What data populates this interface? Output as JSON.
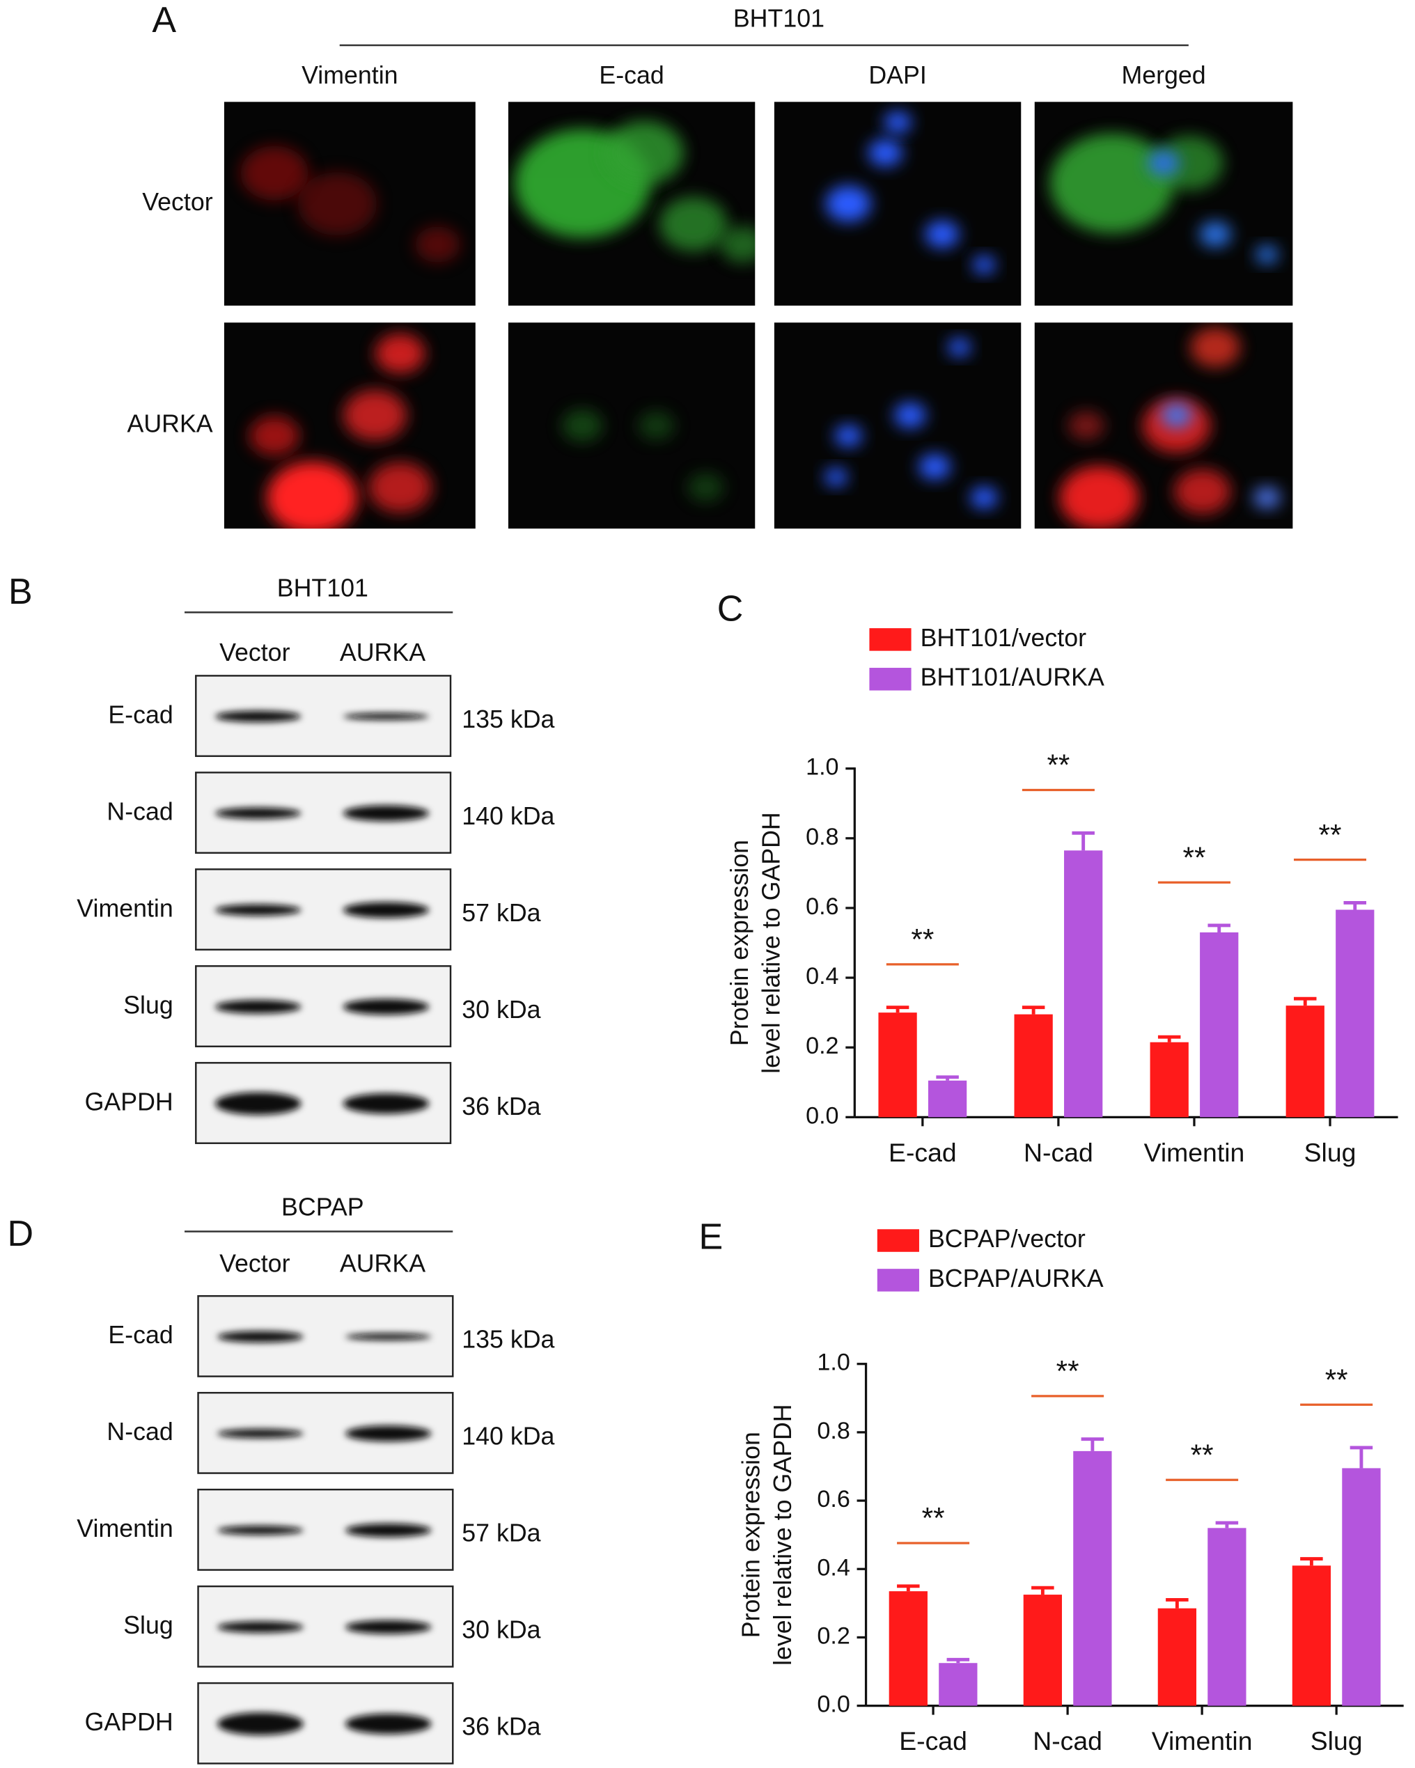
{
  "panel_a": {
    "label": "A",
    "cell_line": "BHT101",
    "columns": [
      "Vimentin",
      "E-cad",
      "DAPI",
      "Merged"
    ],
    "rows": [
      "Vector",
      "AURKA"
    ]
  },
  "panel_b": {
    "label": "B",
    "cell_line": "BHT101",
    "lanes": [
      "Vector",
      "AURKA"
    ],
    "proteins": [
      "E-cad",
      "N-cad",
      "Vimentin",
      "Slug",
      "GAPDH"
    ],
    "sizes": [
      "135 kDa",
      "140 kDa",
      "57 kDa",
      "30 kDa",
      "36 kDa"
    ]
  },
  "panel_d": {
    "label": "D",
    "cell_line": "BCPAP",
    "lanes": [
      "Vector",
      "AURKA"
    ],
    "proteins": [
      "E-cad",
      "N-cad",
      "Vimentin",
      "Slug",
      "GAPDH"
    ],
    "sizes": [
      "135 kDa",
      "140 kDa",
      "57 kDa",
      "30 kDa",
      "36 kDa"
    ]
  },
  "chart_data": [
    {
      "type": "bar",
      "panel_label": "C",
      "ylabel": [
        "Protein expression",
        "level relative to GAPDH"
      ],
      "categories": [
        "E-cad",
        "N-cad",
        "Vimentin",
        "Slug"
      ],
      "series": [
        {
          "name": "BHT101/vector",
          "color": "#ff1a1a",
          "values": [
            0.3,
            0.295,
            0.215,
            0.32
          ],
          "errors": [
            0.015,
            0.02,
            0.015,
            0.02
          ]
        },
        {
          "name": "BHT101/AURKA",
          "color": "#b455dd",
          "values": [
            0.105,
            0.765,
            0.53,
            0.595
          ],
          "errors": [
            0.01,
            0.05,
            0.02,
            0.02
          ]
        }
      ],
      "significance": [
        "**",
        "**",
        "**",
        "**"
      ],
      "ylim": [
        0,
        1
      ],
      "yticks": [
        {
          "value": 0,
          "label": "0.0"
        },
        0.2,
        0.4,
        0.6,
        0.8,
        {
          "value": 1,
          "label": "1.0"
        }
      ]
    },
    {
      "type": "bar",
      "panel_label": "E",
      "ylabel": [
        "Protein expression",
        "level relative to GAPDH"
      ],
      "categories": [
        "E-cad",
        "N-cad",
        "Vimentin",
        "Slug"
      ],
      "series": [
        {
          "name": "BCPAP/vector",
          "color": "#ff1a1a",
          "values": [
            0.335,
            0.325,
            0.285,
            0.41
          ],
          "errors": [
            0.015,
            0.02,
            0.025,
            0.02
          ]
        },
        {
          "name": "BCPAP/AURKA",
          "color": "#b455dd",
          "values": [
            0.125,
            0.745,
            0.52,
            0.695
          ],
          "errors": [
            0.01,
            0.035,
            0.015,
            0.06
          ]
        }
      ],
      "significance": [
        "**",
        "**",
        "**",
        "**"
      ],
      "ylim": [
        0,
        1
      ],
      "yticks": [
        {
          "value": 0,
          "label": "0.0"
        },
        0.2,
        0.4,
        0.6,
        0.8,
        {
          "value": 1,
          "label": "1.0"
        }
      ]
    }
  ]
}
